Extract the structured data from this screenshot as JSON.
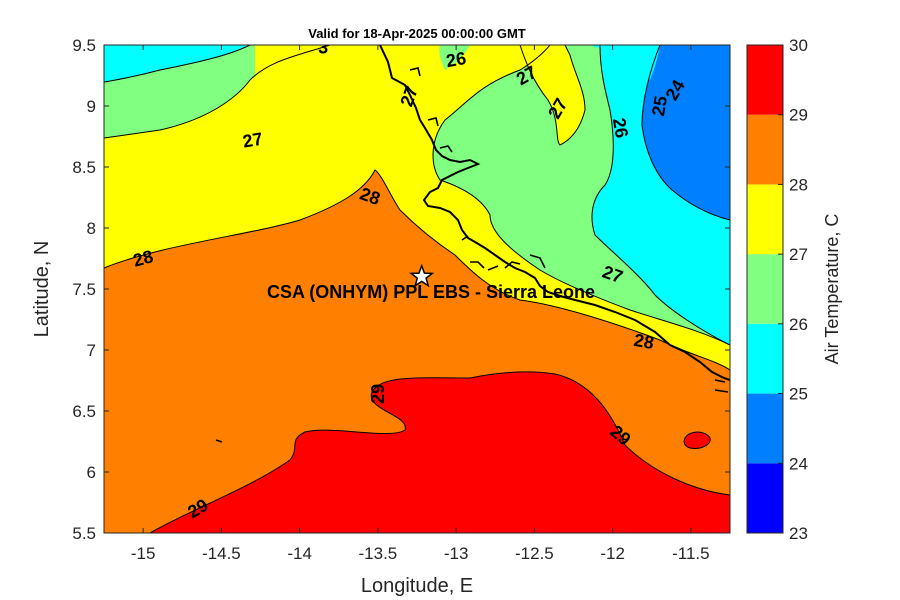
{
  "title": "Valid for 18-Apr-2025 00:00:00 GMT",
  "xlabel": "Longitude, E",
  "ylabel": "Latitude, N",
  "colorbar_label": "Air Temperature, C",
  "station_label": "CSA (ONHYM) PPL EBS  - Sierra Leone",
  "colors": {
    "c23": "#0000ff",
    "c24": "#0080ff",
    "c25": "#00ffff",
    "c26": "#80ff80",
    "c27": "#ffff00",
    "c28": "#ff8000",
    "c29": "#ff0000",
    "c30": "#800000"
  },
  "chart_data": {
    "type": "contour-map",
    "xlim": [
      -15.25,
      -11.25
    ],
    "ylim": [
      5.5,
      9.5
    ],
    "x_ticks": [
      "-15",
      "-14.5",
      "-14",
      "-13.5",
      "-13",
      "-12.5",
      "-12",
      "-11.5"
    ],
    "y_ticks": [
      "5.5",
      "6",
      "6.5",
      "7",
      "7.5",
      "8",
      "8.5",
      "9",
      "9.5"
    ],
    "colorbar_ticks": [
      "23",
      "24",
      "25",
      "26",
      "27",
      "28",
      "29",
      "30"
    ],
    "contour_levels": [
      23,
      24,
      25,
      26,
      27,
      28,
      29,
      30
    ],
    "station": {
      "lon": -13.22,
      "lat": 7.6
    },
    "contour_labels": [
      {
        "text": "26",
        "lon": -13.0,
        "lat": 9.38
      },
      {
        "text": "27",
        "lon": -12.55,
        "lat": 9.25
      },
      {
        "text": "27",
        "lon": -12.35,
        "lat": 8.98
      },
      {
        "text": "27",
        "lon": -13.3,
        "lat": 9.08
      },
      {
        "text": "3",
        "lon": -13.85,
        "lat": 9.48
      },
      {
        "text": "25",
        "lon": -11.7,
        "lat": 9.0
      },
      {
        "text": "24",
        "lon": -11.6,
        "lat": 9.13
      },
      {
        "text": "26",
        "lon": -11.95,
        "lat": 8.82
      },
      {
        "text": "27",
        "lon": -14.3,
        "lat": 8.72
      },
      {
        "text": "28",
        "lon": -13.55,
        "lat": 8.26
      },
      {
        "text": "28",
        "lon": -15.0,
        "lat": 7.75
      },
      {
        "text": "27",
        "lon": -12.0,
        "lat": 7.62
      },
      {
        "text": "28",
        "lon": -11.8,
        "lat": 7.07
      },
      {
        "text": "29",
        "lon": -13.5,
        "lat": 6.64
      },
      {
        "text": "29",
        "lon": -11.95,
        "lat": 6.3
      },
      {
        "text": "29",
        "lon": -14.65,
        "lat": 5.7
      }
    ]
  }
}
